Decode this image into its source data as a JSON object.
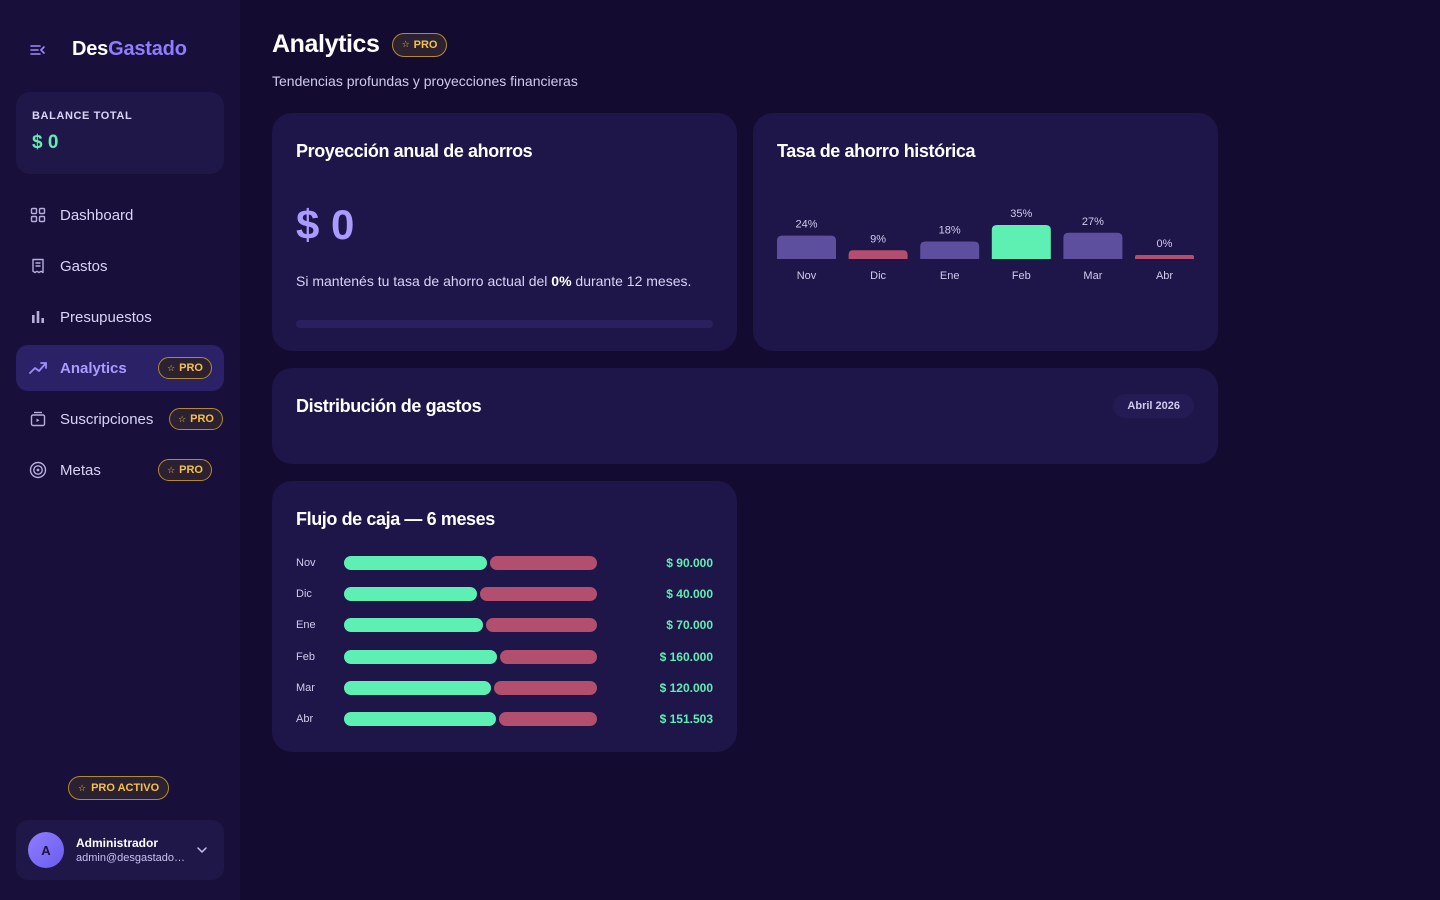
{
  "brand": {
    "name_a": "Des",
    "name_b": "Gastado"
  },
  "balance": {
    "label": "BALANCE TOTAL",
    "value": "$ 0"
  },
  "nav": [
    {
      "label": "Dashboard",
      "icon": "grid-icon",
      "pro": false,
      "active": false
    },
    {
      "label": "Gastos",
      "icon": "receipt-icon",
      "pro": false,
      "active": false
    },
    {
      "label": "Presupuestos",
      "icon": "bar-chart-icon",
      "pro": false,
      "active": false
    },
    {
      "label": "Analytics",
      "icon": "trend-icon",
      "pro": true,
      "active": true
    },
    {
      "label": "Suscripciones",
      "icon": "subscription-icon",
      "pro": true,
      "active": false
    },
    {
      "label": "Metas",
      "icon": "target-icon",
      "pro": true,
      "active": false
    }
  ],
  "pro_label": "PRO",
  "pro_active_label": "PRO ACTIVO",
  "user": {
    "initial": "A",
    "name": "Administrador",
    "email": "admin@desgastado.com"
  },
  "header": {
    "title": "Analytics",
    "badge": "PRO",
    "subtitle": "Tendencias profundas y proyecciones financieras"
  },
  "projection": {
    "title": "Proyección anual de ahorros",
    "value": "$ 0",
    "text_before": "Si mantenés tu tasa de ahorro actual del ",
    "rate": "0%",
    "text_after": " durante 12 meses.",
    "progress": 0
  },
  "savings_rate": {
    "title": "Tasa de ahorro histórica",
    "colors": {
      "normal": "#5d4f9e",
      "best": "#5ef0b3",
      "low": "#b34f6e"
    }
  },
  "distribution": {
    "title": "Distribución de gastos",
    "period": "Abril 2026"
  },
  "cashflow": {
    "title": "Flujo de caja — 6 meses",
    "rows": [
      {
        "month": "Nov",
        "income_share": 0.565,
        "value": "$ 90.000"
      },
      {
        "month": "Dic",
        "income_share": 0.525,
        "value": "$ 40.000"
      },
      {
        "month": "Ene",
        "income_share": 0.55,
        "value": "$ 70.000"
      },
      {
        "month": "Feb",
        "income_share": 0.605,
        "value": "$ 160.000"
      },
      {
        "month": "Mar",
        "income_share": 0.58,
        "value": "$ 120.000"
      },
      {
        "month": "Abr",
        "income_share": 0.6,
        "value": "$ 151.503"
      }
    ]
  },
  "chart_data": {
    "type": "bar",
    "title": "Tasa de ahorro histórica",
    "categories": [
      "Nov",
      "Dic",
      "Ene",
      "Feb",
      "Mar",
      "Abr"
    ],
    "values": [
      24,
      9,
      18,
      35,
      27,
      0
    ],
    "labels": [
      "24%",
      "9%",
      "18%",
      "35%",
      "27%",
      "0%"
    ],
    "ylim": [
      0,
      35
    ],
    "grid": false,
    "xlabel": "",
    "ylabel": ""
  }
}
